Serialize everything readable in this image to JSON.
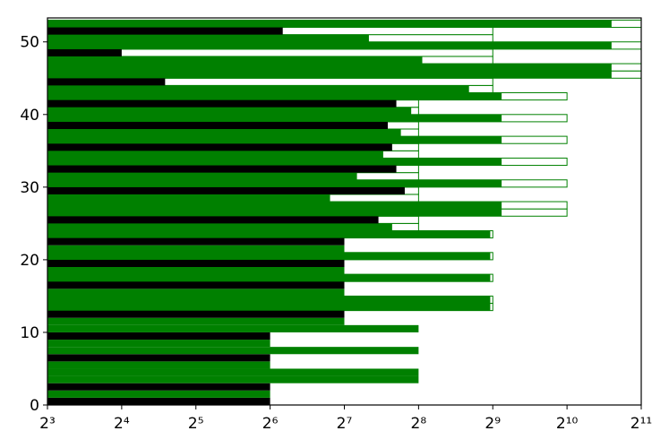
{
  "chart_data": {
    "type": "barh",
    "xscale": "log2",
    "xlim": [
      8,
      2048
    ],
    "xticks": [
      {
        "value": 8,
        "label": "2³"
      },
      {
        "value": 16,
        "label": "2⁴"
      },
      {
        "value": 32,
        "label": "2⁵"
      },
      {
        "value": 64,
        "label": "2⁶"
      },
      {
        "value": 128,
        "label": "2⁷"
      },
      {
        "value": 256,
        "label": "2⁸"
      },
      {
        "value": 512,
        "label": "2⁹"
      },
      {
        "value": 1024,
        "label": "2¹⁰"
      },
      {
        "value": 2048,
        "label": "2¹¹"
      }
    ],
    "ylim": [
      0,
      53.3
    ],
    "yticks": [
      0,
      10,
      20,
      30,
      40,
      50
    ],
    "y": [
      0,
      1,
      2,
      3,
      4,
      5,
      6,
      7,
      8,
      9,
      10,
      11,
      12,
      13,
      14,
      15,
      16,
      17,
      18,
      19,
      20,
      21,
      22,
      23,
      24,
      25,
      26,
      27,
      28,
      29,
      30,
      31,
      32,
      33,
      34,
      35,
      36,
      37,
      38,
      39,
      40,
      41,
      42,
      43,
      44,
      45,
      46,
      47,
      48,
      49,
      50,
      51,
      52
    ],
    "series": [
      {
        "fill": "none",
        "color": "#008000",
        "values": [
          null,
          null,
          null,
          null,
          null,
          null,
          null,
          null,
          null,
          null,
          null,
          null,
          null,
          512,
          512,
          null,
          null,
          512,
          null,
          null,
          512,
          null,
          null,
          512,
          256,
          256,
          1024,
          1024,
          256,
          256,
          1024,
          256,
          256,
          1024,
          256,
          256,
          1024,
          256,
          256,
          1024,
          256,
          256,
          1024,
          512,
          512,
          2048,
          2048,
          512,
          512,
          2048,
          512,
          512,
          2048
        ]
      },
      {
        "fill": "solid",
        "colors": [
          "#000000",
          "#008000",
          "#000000",
          "#008000",
          "#008000",
          "#008000",
          "#000000",
          "#008000",
          "#008000",
          "#000000",
          "#008000",
          "#008000",
          "#000000",
          "#008000",
          "#008000",
          "#008000",
          "#000000",
          "#008000",
          "#008000",
          "#000000",
          "#008000",
          "#008000",
          "#000000",
          "#008000",
          "#008000",
          "#000000",
          "#008000",
          "#008000",
          "#008000",
          "#000000",
          "#008000",
          "#008000",
          "#000000",
          "#008000",
          "#008000",
          "#000000",
          "#008000",
          "#008000",
          "#000000",
          "#008000",
          "#008000",
          "#000000",
          "#008000",
          "#008000",
          "#000000",
          "#008000",
          "#008000",
          "#008000",
          "#000000",
          "#008000",
          "#008000",
          "#000000",
          "#008000"
        ],
        "values": [
          64,
          64,
          64,
          256,
          256,
          64,
          64,
          256,
          64,
          64,
          256,
          128,
          128,
          500,
          500,
          128,
          128,
          500,
          128,
          128,
          500,
          128,
          128,
          500,
          200,
          176,
          556,
          556,
          112,
          225,
          556,
          144,
          208,
          556,
          184,
          200,
          556,
          217,
          192,
          556,
          239,
          208,
          556,
          410,
          24,
          1552,
          1552,
          265,
          16,
          1552,
          161,
          72,
          1552
        ]
      }
    ]
  }
}
